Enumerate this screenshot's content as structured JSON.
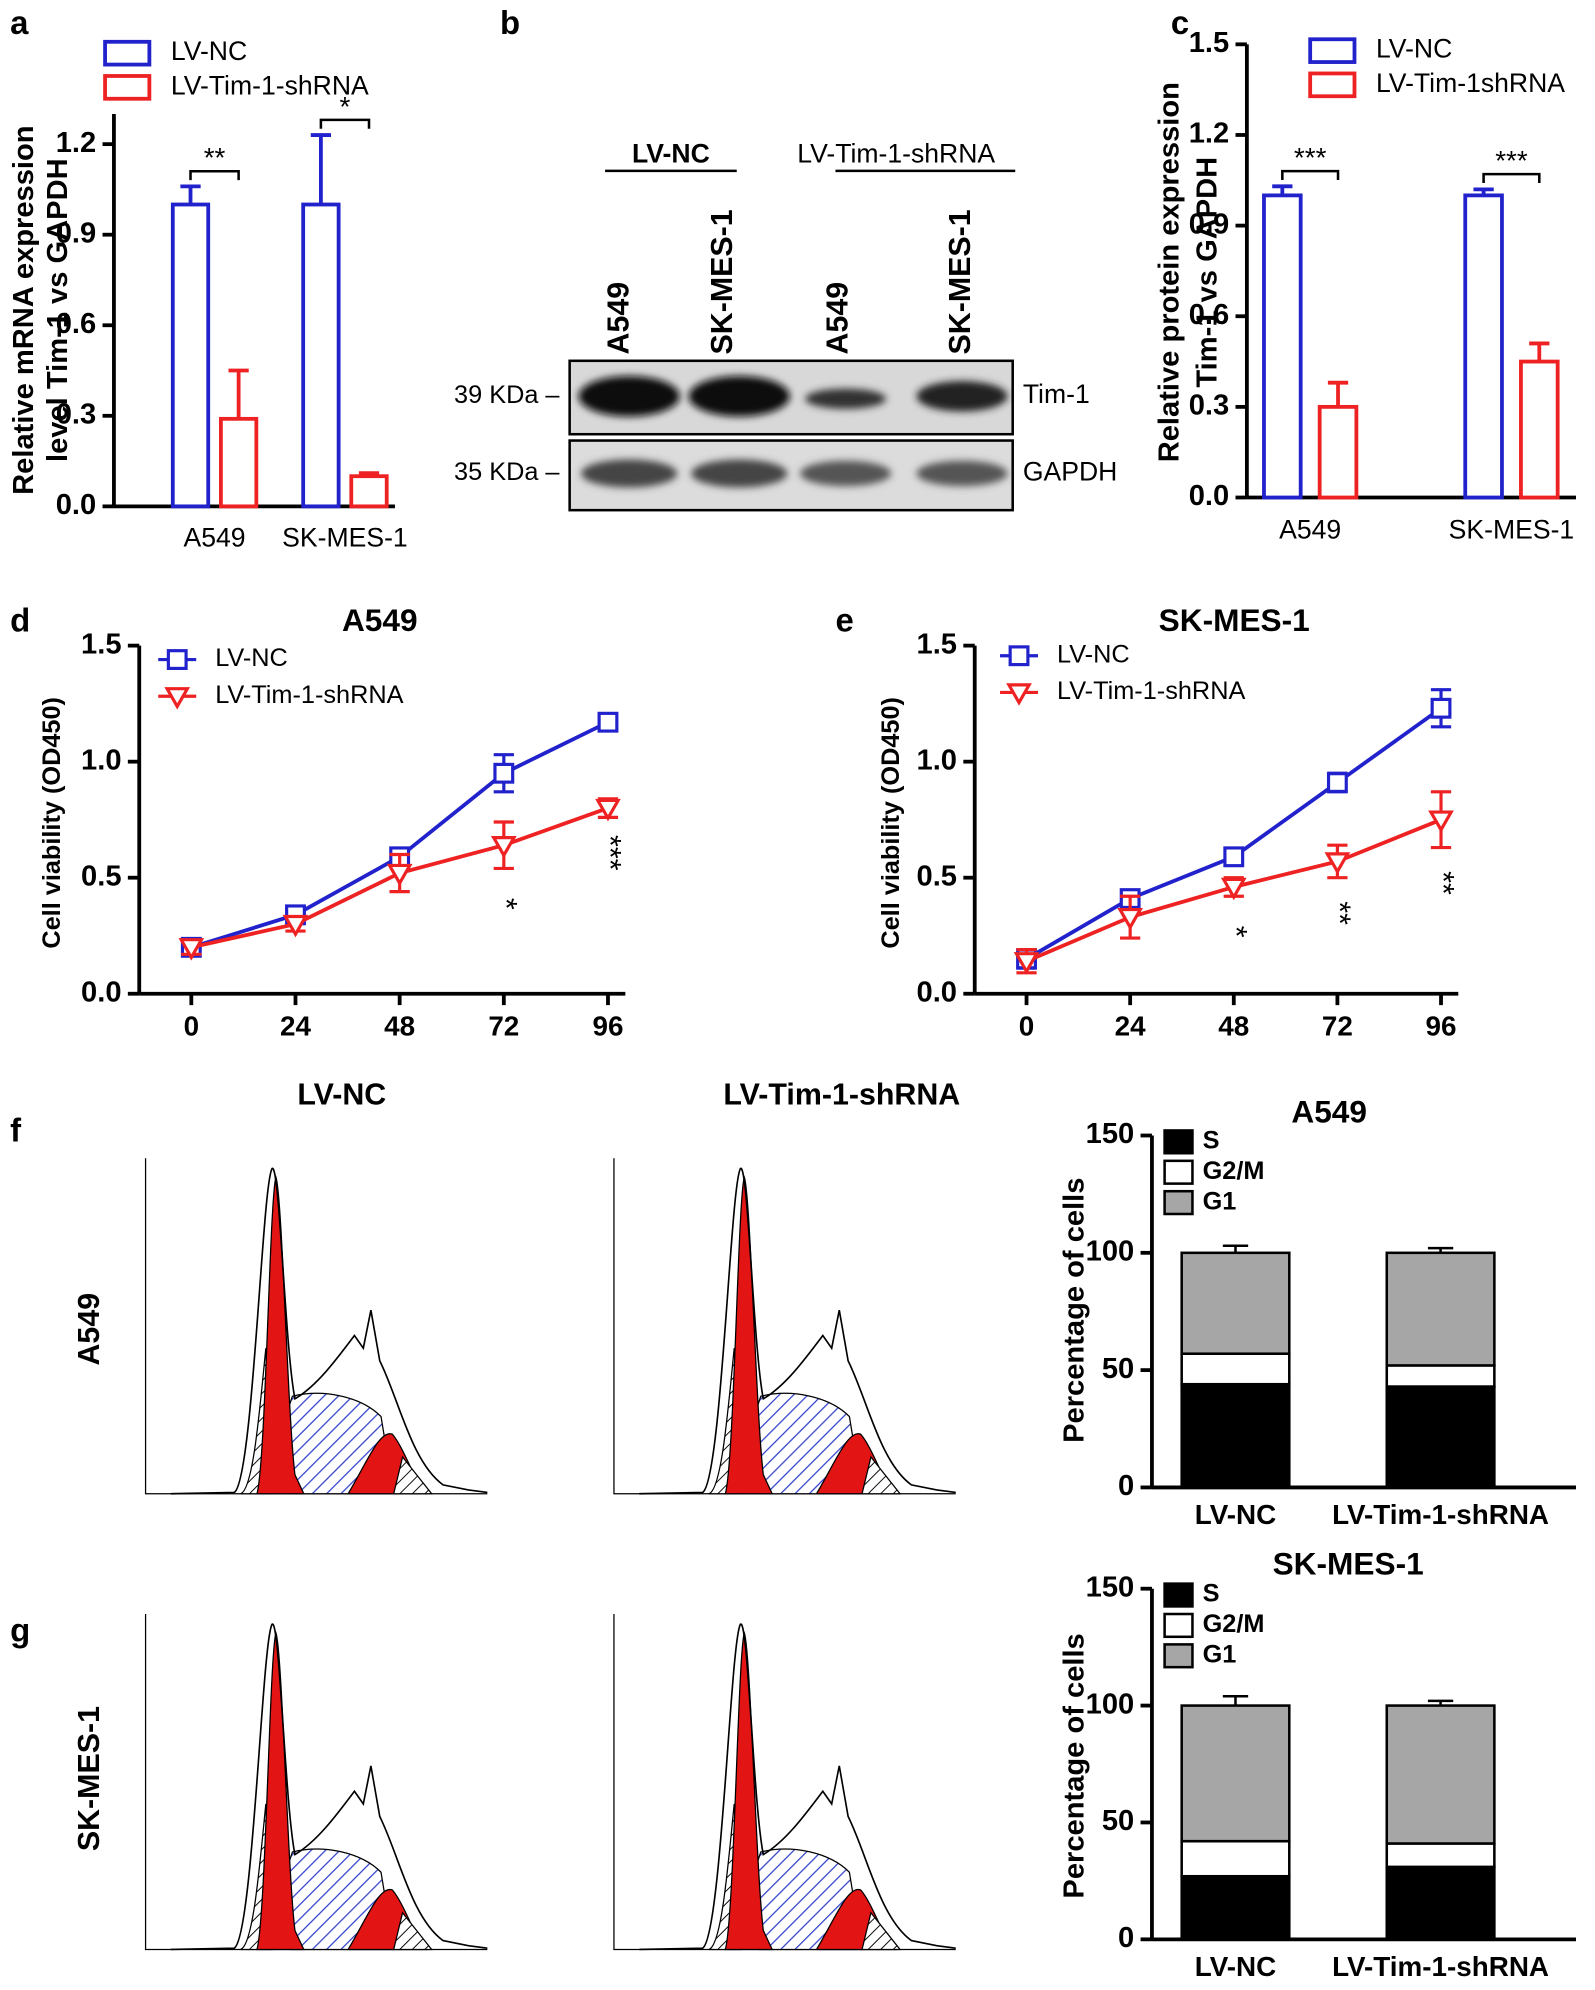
{
  "chart_data": [
    {
      "panel": "a",
      "type": "bar",
      "ylabel": [
        "Relative mRNA expression",
        "level Tim-1 vs GAPDH"
      ],
      "categories": [
        "A549",
        "SK-MES-1"
      ],
      "series": [
        {
          "name": "LV-NC",
          "color": "#2222cc",
          "values": [
            1.0,
            1.0
          ],
          "errors": [
            0.06,
            0.23
          ]
        },
        {
          "name": "LV-Tim-1-shRNA",
          "color": "#ee2222",
          "values": [
            0.29,
            0.1
          ],
          "errors": [
            0.16,
            0.01
          ]
        }
      ],
      "annotations": [
        "**",
        "*"
      ],
      "ylim": [
        0,
        1.3
      ],
      "yticks": [
        {
          "value": 0,
          "label": "0.0"
        },
        0.3,
        0.6,
        0.9,
        1.2
      ]
    },
    {
      "panel": "c",
      "type": "bar",
      "ylabel": [
        "Relative protein expression",
        "Tim-1 vs GAPDH"
      ],
      "categories": [
        "A549",
        "SK-MES-1"
      ],
      "series": [
        {
          "name": "LV-NC",
          "color": "#2222cc",
          "values": [
            1.0,
            1.0
          ],
          "errors": [
            0.03,
            0.02
          ]
        },
        {
          "name": "LV-Tim-1shRNA",
          "color": "#ee2222",
          "values": [
            0.3,
            0.45
          ],
          "errors": [
            0.08,
            0.06
          ]
        }
      ],
      "annotations": [
        "***",
        "***"
      ],
      "ylim": [
        0,
        1.5
      ],
      "yticks": [
        {
          "value": 0,
          "label": "0.0"
        },
        0.3,
        0.6,
        0.9,
        1.2,
        1.5
      ]
    },
    {
      "panel": "d",
      "type": "line",
      "title": "A549",
      "ylabel": "Cell viability (OD450)",
      "x": [
        0,
        24,
        48,
        72,
        96
      ],
      "series": [
        {
          "name": "LV-NC",
          "color": "#2222cc",
          "marker": "square",
          "values": [
            0.2,
            0.34,
            0.59,
            0.95,
            1.17
          ],
          "errors": [
            0.03,
            0.03,
            0.03,
            0.08,
            0.03
          ]
        },
        {
          "name": "LV-Tim-1-shRNA",
          "color": "#ee2222",
          "marker": "triangle-down",
          "values": [
            0.2,
            0.3,
            0.52,
            0.64,
            0.8
          ],
          "errors": [
            0.03,
            0.03,
            0.08,
            0.1,
            0.04
          ]
        }
      ],
      "annotations": [
        null,
        null,
        null,
        "*",
        "***"
      ],
      "xlim": [
        -12,
        100
      ],
      "xticks": [
        0,
        24,
        48,
        72,
        96
      ],
      "ylim": [
        0,
        1.5
      ],
      "yticks": [
        {
          "value": 0,
          "label": "0.0"
        },
        0.5,
        {
          "value": 1,
          "label": "1.0"
        },
        1.5
      ]
    },
    {
      "panel": "e",
      "type": "line",
      "title": "SK-MES-1",
      "ylabel": "Cell viability (OD450)",
      "x": [
        0,
        24,
        48,
        72,
        96
      ],
      "series": [
        {
          "name": "LV-NC",
          "color": "#2222cc",
          "marker": "square",
          "values": [
            0.15,
            0.41,
            0.59,
            0.91,
            1.23
          ],
          "errors": [
            0.04,
            0.03,
            0.03,
            0.04,
            0.08
          ]
        },
        {
          "name": "LV-Tim-1-shRNA",
          "color": "#ee2222",
          "marker": "triangle-down",
          "values": [
            0.14,
            0.33,
            0.46,
            0.57,
            0.75
          ],
          "errors": [
            0.05,
            0.09,
            0.04,
            0.07,
            0.12
          ]
        }
      ],
      "annotations": [
        null,
        null,
        "*",
        "**",
        "**"
      ],
      "xlim": [
        -12,
        100
      ],
      "xticks": [
        0,
        24,
        48,
        72,
        96
      ],
      "ylim": [
        0,
        1.5
      ],
      "yticks": [
        {
          "value": 0,
          "label": "0.0"
        },
        0.5,
        {
          "value": 1,
          "label": "1.0"
        },
        1.5
      ]
    },
    {
      "panel": "f",
      "type": "stacked-bar",
      "title": "A549",
      "ylabel": "Percentage of cells",
      "categories": [
        "LV-NC",
        "LV-Tim-1-shRNA"
      ],
      "series": [
        {
          "name": "S",
          "color": "#000000",
          "values": [
            44,
            43
          ],
          "errors": [
            3,
            2
          ]
        },
        {
          "name": "G2/M",
          "color": "#ffffff",
          "values": [
            13,
            9
          ],
          "errors": [
            1,
            1
          ]
        },
        {
          "name": "G1",
          "color": "#a6a6a6",
          "values": [
            43,
            48
          ],
          "errors": [
            3,
            2
          ]
        }
      ],
      "ylim": [
        0,
        150
      ],
      "yticks": [
        0,
        50,
        100,
        150
      ]
    },
    {
      "panel": "g",
      "type": "stacked-bar",
      "title": "SK-MES-1",
      "ylabel": "Percentage of cells",
      "categories": [
        "LV-NC",
        "LV-Tim-1-shRNA"
      ],
      "series": [
        {
          "name": "S",
          "color": "#000000",
          "values": [
            27,
            31
          ],
          "errors": [
            2,
            1
          ]
        },
        {
          "name": "G2/M",
          "color": "#ffffff",
          "values": [
            15,
            10
          ],
          "errors": [
            2,
            1
          ]
        },
        {
          "name": "G1",
          "color": "#a6a6a6",
          "values": [
            58,
            59
          ],
          "errors": [
            4,
            2
          ]
        }
      ],
      "ylim": [
        0,
        150
      ],
      "yticks": [
        0,
        50,
        100,
        150
      ]
    }
  ],
  "blot": {
    "panel": "b",
    "groups": [
      "LV-NC",
      "LV-Tim-1-shRNA"
    ],
    "lanes": [
      "A549",
      "SK-MES-1",
      "A549",
      "SK-MES-1"
    ],
    "markers": [
      "39 KDa –",
      "35 KDa –"
    ],
    "proteins": [
      "Tim-1",
      "GAPDH"
    ]
  },
  "flow": {
    "columns": [
      "LV-NC",
      "LV-Tim-1-shRNA"
    ],
    "rows": [
      "A549",
      "SK-MES-1"
    ]
  }
}
